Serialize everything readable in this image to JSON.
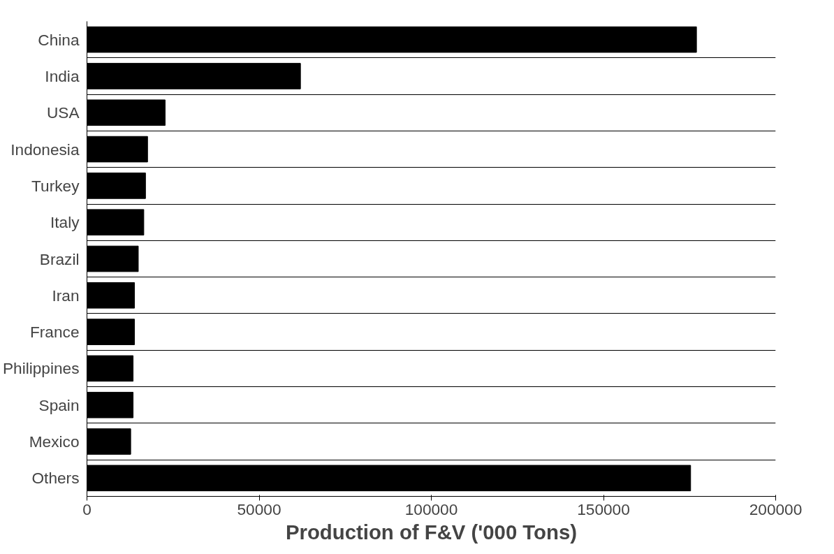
{
  "chart_data": {
    "type": "bar",
    "orientation": "horizontal",
    "xlabel": "Production of F&V ('000 Tons)",
    "categories": [
      "China",
      "India",
      "USA",
      "Indonesia",
      "Turkey",
      "Italy",
      "Brazil",
      "Iran",
      "France",
      "Philippines",
      "Spain",
      "Mexico",
      "Others"
    ],
    "values": [
      177000,
      62000,
      22700,
      17600,
      17000,
      16500,
      14900,
      13800,
      13800,
      13400,
      13400,
      12700,
      175300
    ],
    "color": "#000000",
    "xlim": [
      0,
      200000
    ],
    "xticks": [
      0,
      50000,
      100000,
      150000,
      200000
    ],
    "grid": "y"
  }
}
